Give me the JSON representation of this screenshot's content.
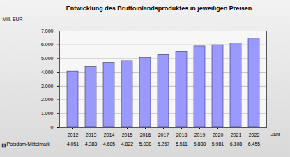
{
  "chart_data": {
    "type": "bar",
    "title": "Entwicklung des Bruttoinlandsproduktes in jeweiligen Preisen",
    "x_label": "Jahr",
    "y_label": "Mill. EUR",
    "categories": [
      "2012",
      "2013",
      "2014",
      "2015",
      "2016",
      "2017",
      "2018",
      "2019",
      "2020",
      "2021",
      "2022"
    ],
    "series": [
      {
        "name": "Potsdam-Mittelmark",
        "color": "#9999ff",
        "values": [
          4051,
          4383,
          4685,
          4822,
          5038,
          5257,
          5511,
          5888,
          5981,
          6108,
          6455
        ],
        "value_labels": [
          "4.051",
          "4.383",
          "4.685",
          "4.822",
          "5.038",
          "5.257",
          "5.511",
          "5.888",
          "5.981",
          "6.108",
          "6.455"
        ]
      }
    ],
    "ylim": [
      0,
      7000
    ],
    "yticks": [
      0,
      {
        "value": 1000,
        "label": "1.000"
      },
      {
        "value": 2000,
        "label": "2.000"
      },
      {
        "value": 3000,
        "label": "3.000"
      },
      {
        "value": 4000,
        "label": "4.000"
      },
      {
        "value": 5000,
        "label": "5.000"
      },
      {
        "value": 6000,
        "label": "6.000"
      },
      {
        "value": 7000,
        "label": "7.000"
      }
    ],
    "grid": true,
    "data_labels": true
  }
}
